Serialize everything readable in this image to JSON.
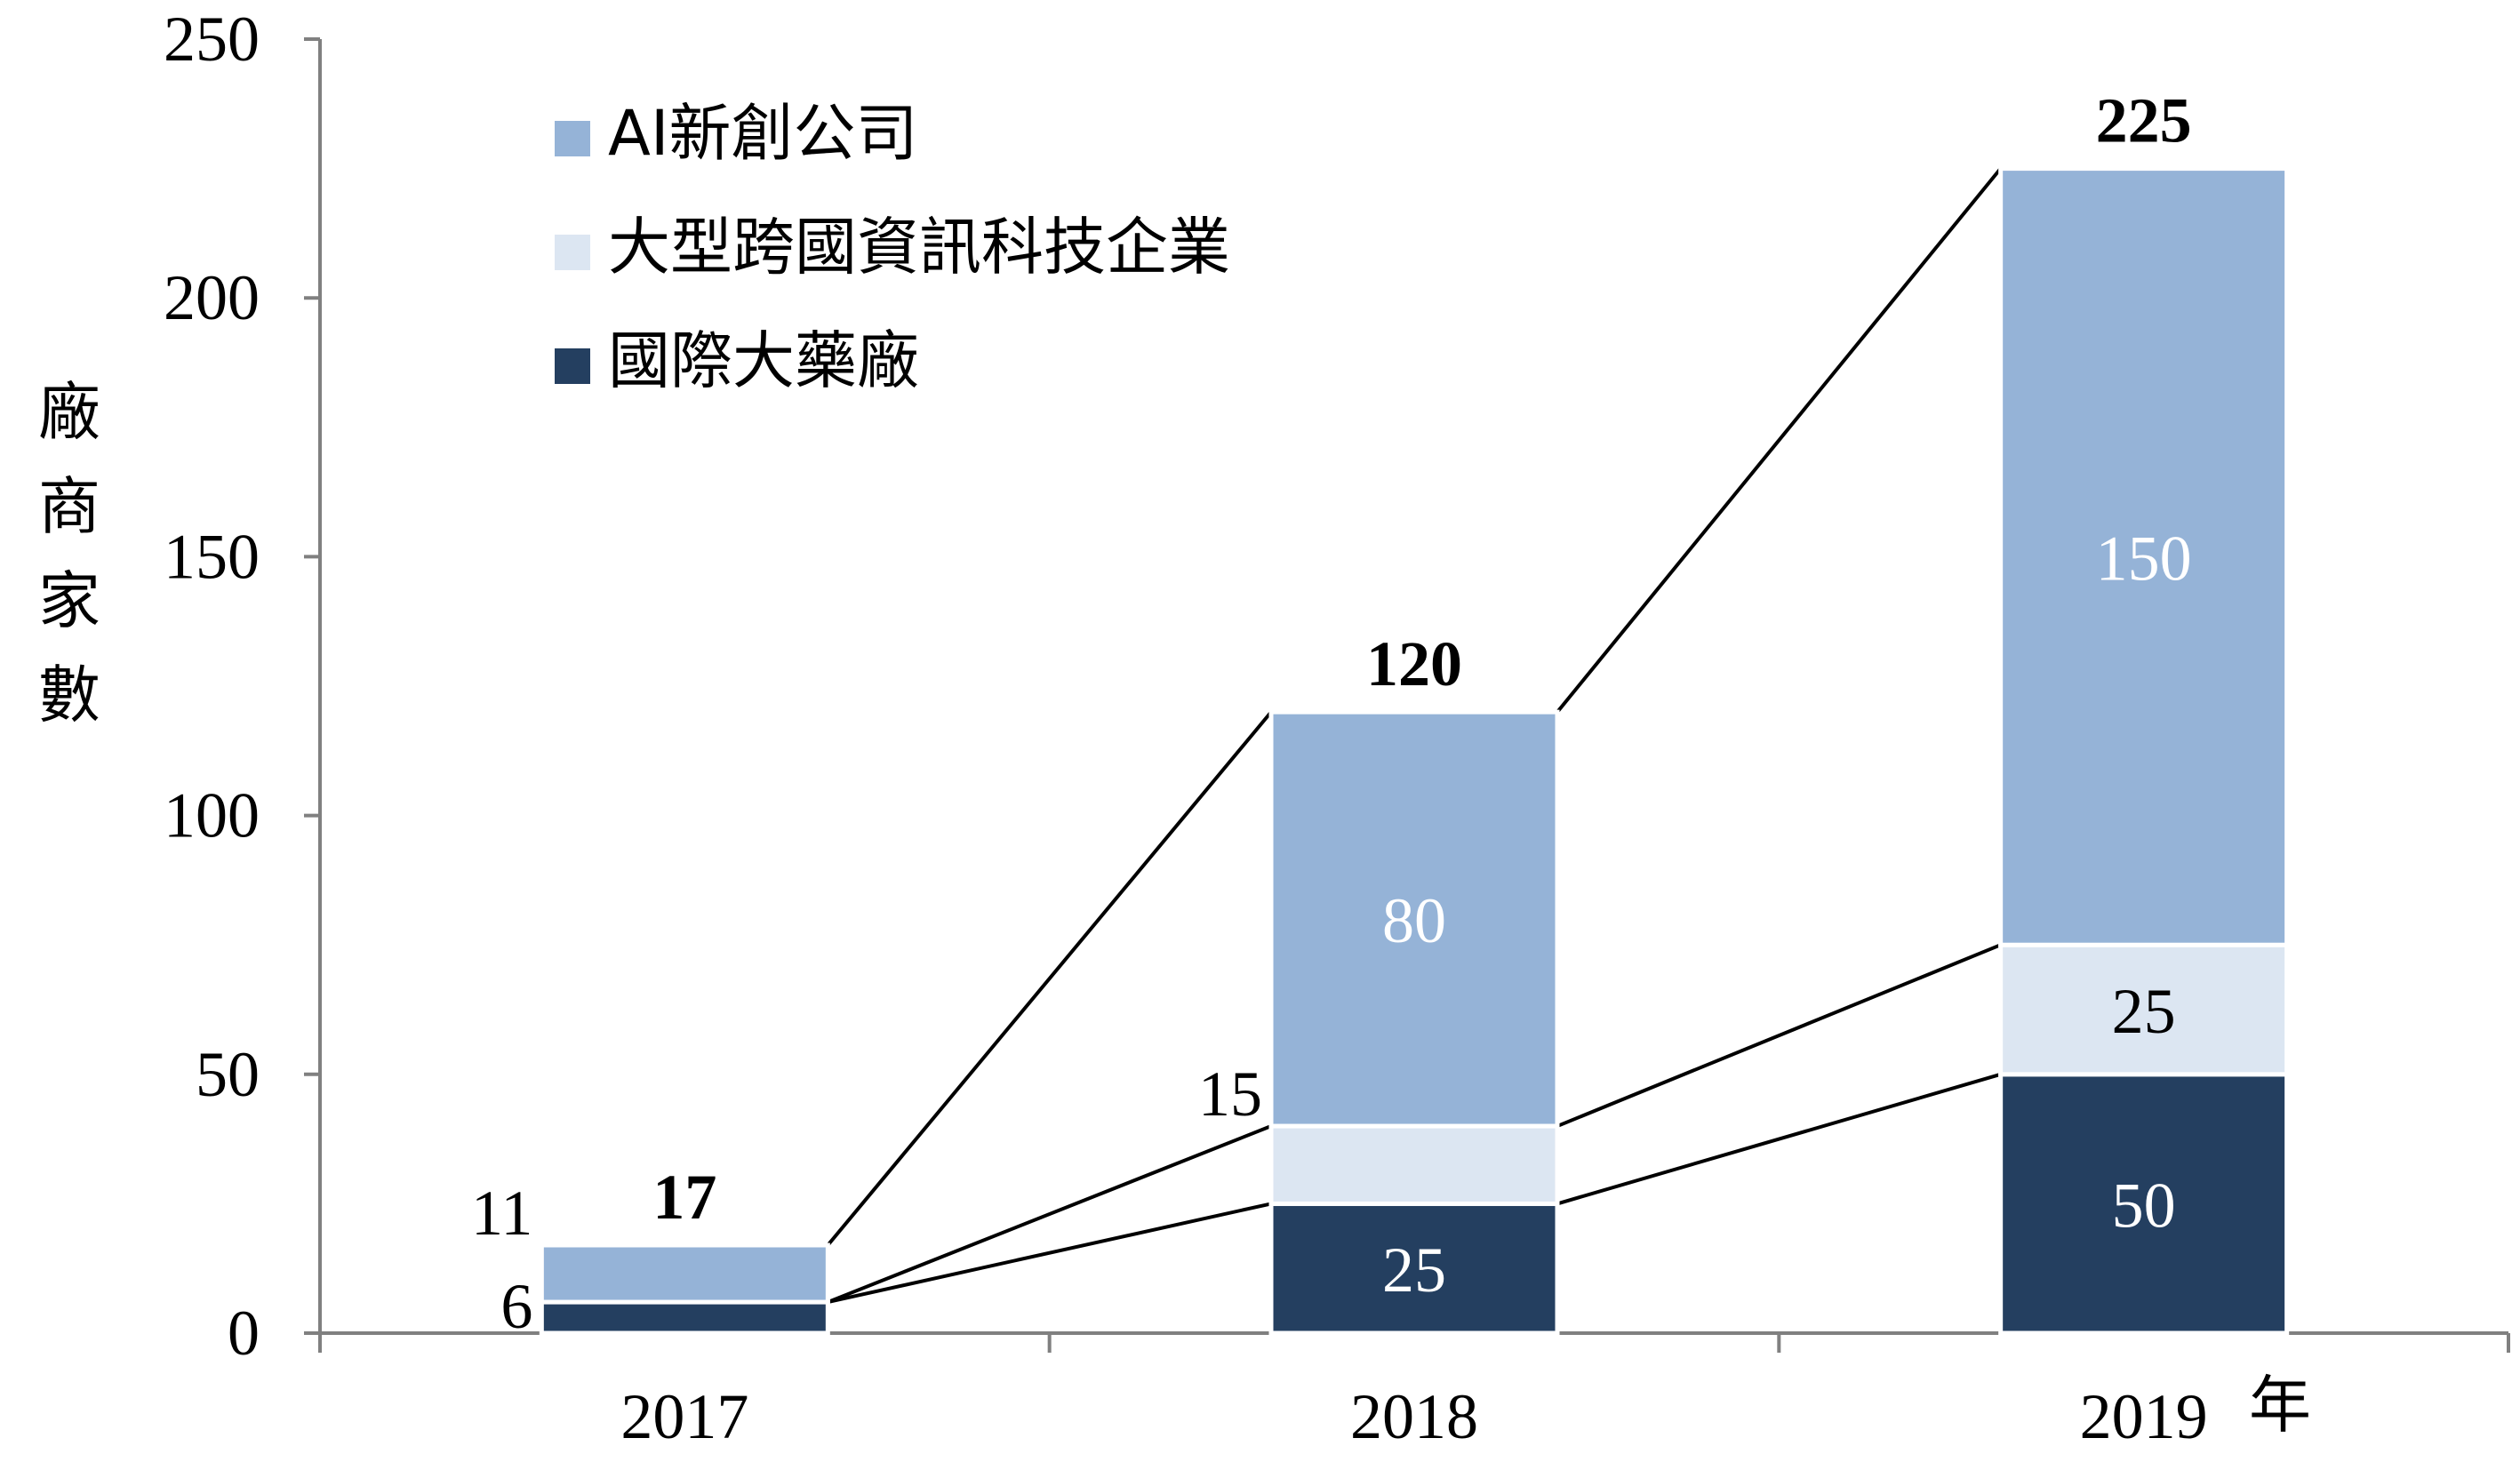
{
  "chart_data": {
    "type": "bar",
    "stacked": true,
    "categories": [
      "2017",
      "2018",
      "2019"
    ],
    "x_unit": "年",
    "ylabel": "廠商家數",
    "ylim": [
      0,
      250
    ],
    "yticks": [
      0,
      50,
      100,
      150,
      200,
      250
    ],
    "legend_position": "top-left",
    "grid": false,
    "series": [
      {
        "name": "國際大藥廠",
        "values": [
          6,
          25,
          50
        ],
        "color": "#243f60",
        "label_color": "#ffffff"
      },
      {
        "name": "大型跨國資訊科技企業",
        "values": [
          0,
          15,
          25
        ],
        "color": "#dce6f2",
        "label_color": "#000000"
      },
      {
        "name": "AI新創公司",
        "values": [
          11,
          80,
          150
        ],
        "color": "#95b3d7",
        "label_color": "#ffffff"
      }
    ],
    "totals": [
      17,
      120,
      225
    ],
    "legend_order": [
      "AI新創公司",
      "大型跨國資訊科技企業",
      "國際大藥廠"
    ]
  }
}
